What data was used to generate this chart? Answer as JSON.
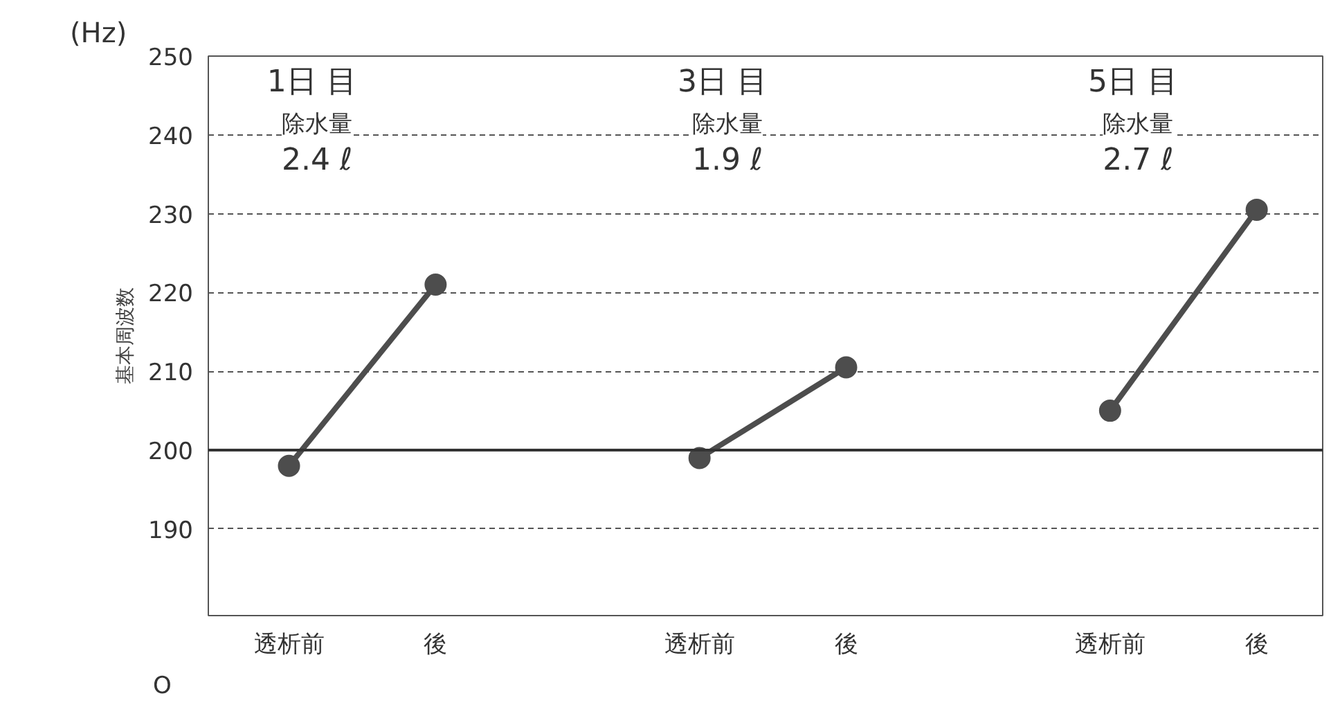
{
  "chart_data": {
    "type": "line",
    "ylabel": "基本周波数",
    "categories": [
      "透析前",
      "後",
      "透析前",
      "後",
      "透析前",
      "後"
    ],
    "series": [
      {
        "color": "#4d4d4d",
        "values": [
          198,
          221,
          null,
          null,
          null,
          null
        ]
      },
      {
        "color": "#4d4d4d",
        "values": [
          null,
          null,
          199,
          210.5,
          null,
          null
        ]
      },
      {
        "color": "#4d4d4d",
        "values": [
          null,
          null,
          null,
          null,
          205,
          230.5
        ]
      }
    ],
    "ylim": [
      179,
      250
    ],
    "yticks": [
      190,
      200,
      210,
      220,
      230,
      240,
      250
    ],
    "grid": "y",
    "marker": "circle",
    "line_style": "solid",
    "ref_lines": [
      {
        "axis": "y",
        "value": 200,
        "color": "#333333",
        "line_style": "solid"
      }
    ],
    "annotations": [
      "1日 目",
      "除水量",
      "2.4 ℓ",
      "3日 目",
      "除水量",
      "1.9 ℓ",
      "5日 目",
      "除水量",
      "2.7 ℓ",
      "(Hz)",
      "O"
    ]
  }
}
